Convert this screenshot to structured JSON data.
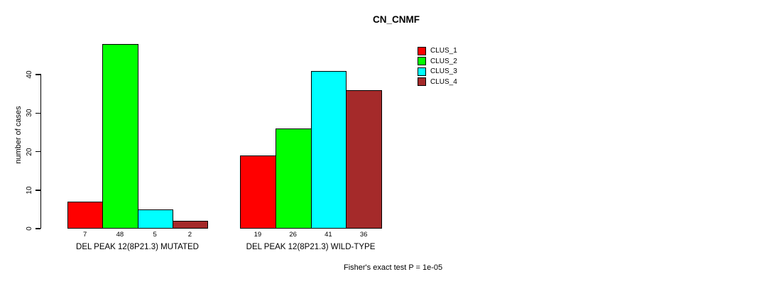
{
  "chart_data": {
    "type": "bar",
    "title": "CN_CNMF",
    "ylabel": "number of cases",
    "xlabel": "",
    "ylim": [
      0,
      40
    ],
    "yticks": [
      0,
      10,
      20,
      30,
      40
    ],
    "grid": false,
    "legend_position": "top-right",
    "categories": [
      "DEL PEAK 12(8P21.3) MUTATED",
      "DEL PEAK 12(8P21.3) WILD-TYPE"
    ],
    "series": [
      {
        "name": "CLUS_1",
        "color": "#ff0000",
        "values": [
          7,
          19
        ]
      },
      {
        "name": "CLUS_2",
        "color": "#00ff00",
        "values": [
          48,
          26
        ]
      },
      {
        "name": "CLUS_3",
        "color": "#00ffff",
        "values": [
          5,
          41
        ]
      },
      {
        "name": "CLUS_4",
        "color": "#a52a2a",
        "values": [
          2,
          36
        ]
      }
    ],
    "bar_value_labels": [
      [
        7,
        48,
        5,
        2
      ],
      [
        19,
        26,
        41,
        36
      ]
    ],
    "footnote": "Fisher's exact test P = 1e-05"
  }
}
